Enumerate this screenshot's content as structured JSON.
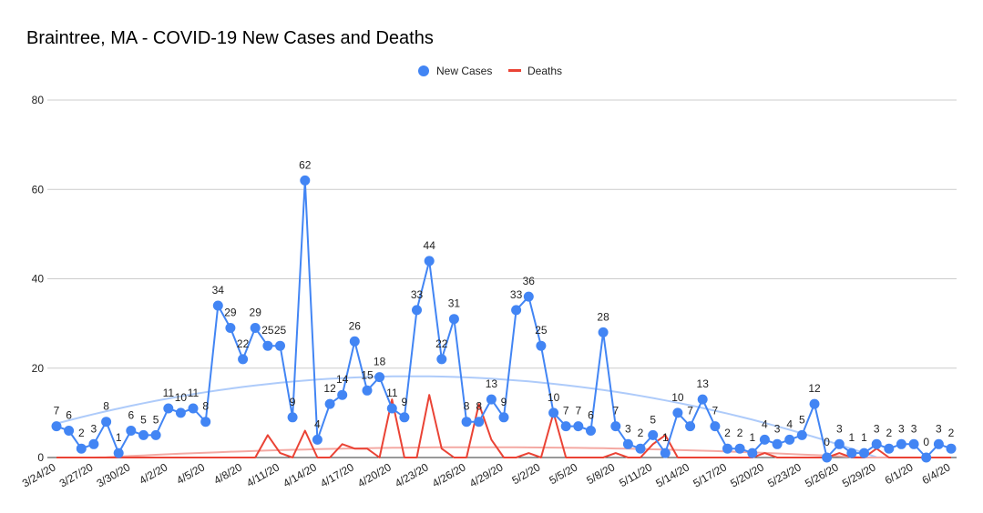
{
  "chart_data": {
    "type": "line",
    "title": "Braintree, MA - COVID-19 New Cases and Deaths",
    "legend_position": "top",
    "grid": true,
    "ylim": [
      0,
      80
    ],
    "y_ticks": [
      "0",
      "20",
      "40",
      "60",
      "80"
    ],
    "x_start": "3/24/20",
    "x": [
      "3/24/20",
      "3/25/20",
      "3/26/20",
      "3/27/20",
      "3/28/20",
      "3/29/20",
      "3/30/20",
      "3/31/20",
      "4/1/20",
      "4/2/20",
      "4/3/20",
      "4/4/20",
      "4/5/20",
      "4/6/20",
      "4/7/20",
      "4/8/20",
      "4/9/20",
      "4/10/20",
      "4/11/20",
      "4/12/20",
      "4/13/20",
      "4/14/20",
      "4/15/20",
      "4/16/20",
      "4/17/20",
      "4/18/20",
      "4/19/20",
      "4/20/20",
      "4/21/20",
      "4/22/20",
      "4/23/20",
      "4/24/20",
      "4/25/20",
      "4/26/20",
      "4/27/20",
      "4/28/20",
      "4/29/20",
      "4/30/20",
      "5/1/20",
      "5/2/20",
      "5/3/20",
      "5/4/20",
      "5/5/20",
      "5/6/20",
      "5/7/20",
      "5/8/20",
      "5/9/20",
      "5/10/20",
      "5/11/20",
      "5/12/20",
      "5/13/20",
      "5/14/20",
      "5/15/20",
      "5/16/20",
      "5/17/20",
      "5/18/20",
      "5/19/20",
      "5/20/20",
      "5/21/20",
      "5/22/20",
      "5/23/20",
      "5/24/20",
      "5/25/20",
      "5/26/20",
      "5/27/20",
      "5/28/20",
      "5/29/20",
      "5/30/20",
      "5/31/20",
      "6/1/20",
      "6/2/20",
      "6/3/20",
      "6/4/20"
    ],
    "x_tick_labels": [
      "3/24/20",
      "3/27/20",
      "3/30/20",
      "4/2/20",
      "4/5/20",
      "4/8/20",
      "4/11/20",
      "4/14/20",
      "4/17/20",
      "4/20/20",
      "4/23/20",
      "4/26/20",
      "4/29/20",
      "5/2/20",
      "5/5/20",
      "5/8/20",
      "5/11/20",
      "5/14/20",
      "5/17/20",
      "5/20/20",
      "5/23/20",
      "5/26/20",
      "5/29/20",
      "6/1/20",
      "6/4/20"
    ],
    "series": [
      {
        "name": "New Cases",
        "color": "#4285f4",
        "marker": "circle",
        "values": [
          7,
          6,
          2,
          3,
          8,
          1,
          6,
          5,
          5,
          11,
          10,
          11,
          8,
          34,
          29,
          22,
          29,
          25,
          25,
          9,
          62,
          4,
          12,
          14,
          26,
          15,
          18,
          11,
          9,
          33,
          44,
          22,
          31,
          8,
          8,
          13,
          9,
          33,
          36,
          25,
          10,
          7,
          7,
          6,
          28,
          7,
          3,
          2,
          5,
          1,
          10,
          7,
          13,
          7,
          2,
          2,
          1,
          4,
          3,
          4,
          5,
          12,
          0,
          3,
          1,
          1,
          3,
          2,
          3,
          3,
          0,
          3,
          2
        ],
        "trendline_color": "#aecbfa"
      },
      {
        "name": "Deaths",
        "color": "#ea4335",
        "marker": "none",
        "values": [
          0,
          0,
          0,
          0,
          0,
          0,
          0,
          0,
          0,
          0,
          0,
          0,
          0,
          0,
          0,
          0,
          0,
          5,
          1,
          0,
          6,
          0,
          0,
          3,
          2,
          2,
          0,
          13,
          0,
          0,
          14,
          2,
          0,
          0,
          12,
          4,
          0,
          0,
          1,
          0,
          10,
          0,
          0,
          0,
          0,
          1,
          0,
          0,
          3,
          5,
          0,
          0,
          0,
          0,
          0,
          0,
          0,
          1,
          0,
          0,
          0,
          0,
          0,
          1,
          0,
          0,
          2,
          0,
          0,
          0,
          0,
          0,
          0
        ],
        "trendline_color": "#f4a9a3"
      }
    ]
  }
}
